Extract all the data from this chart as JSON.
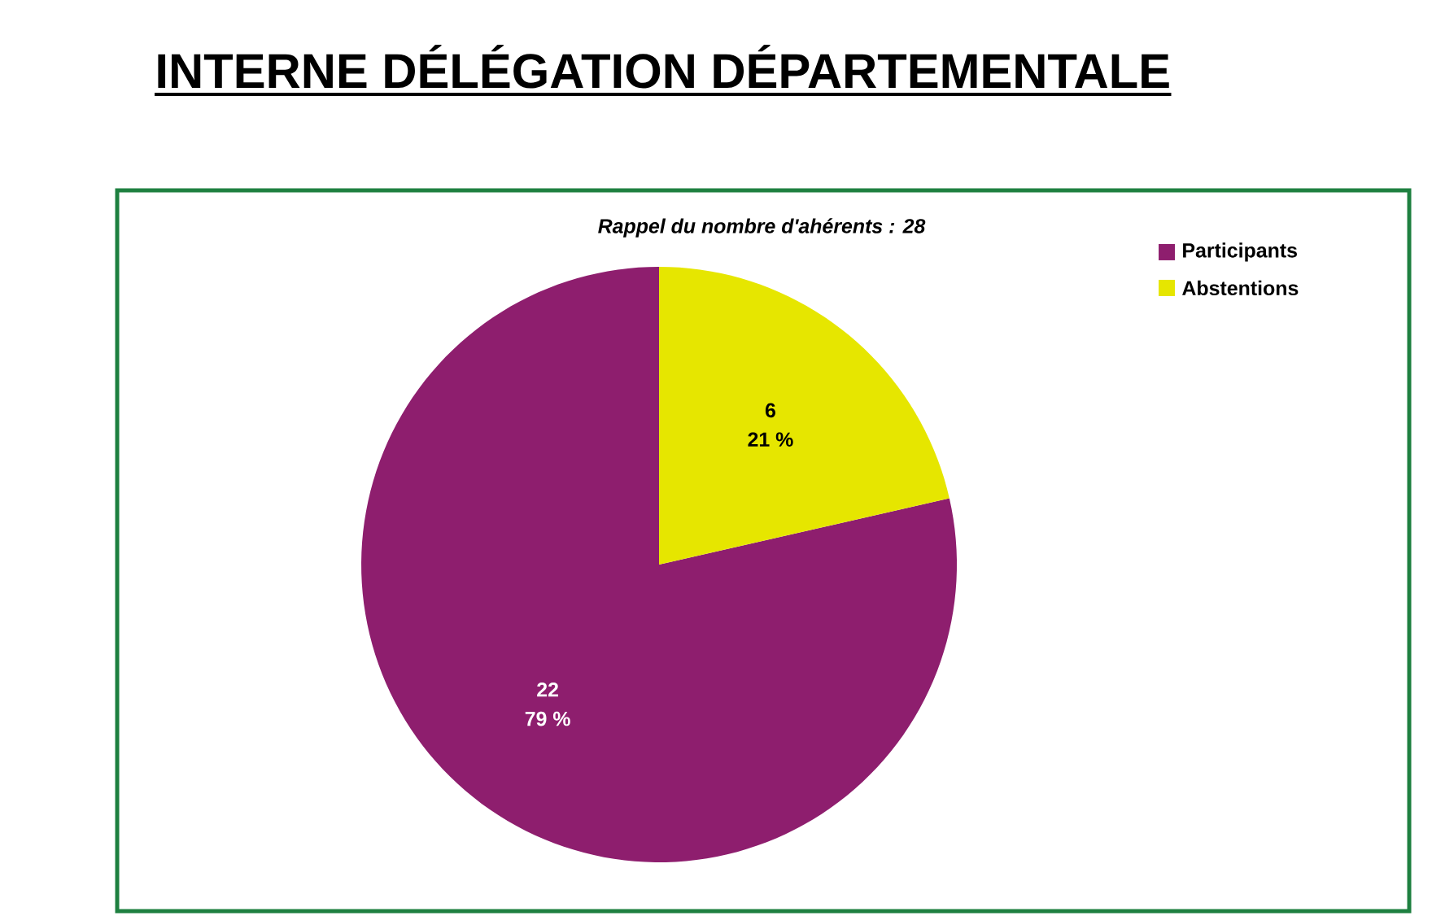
{
  "chart_data": {
    "type": "pie",
    "title": "INTERNE DÉLÉGATION DÉPARTEMENTALE",
    "subtitle": "Rappel du nombre d'ahérents : 28",
    "categories": [
      "Participants",
      "Abstentions"
    ],
    "values": [
      22,
      6
    ],
    "colors": [
      "#8e1e6e",
      "#e6e600"
    ],
    "value_labels": [
      "22",
      "6"
    ],
    "annotations": [
      {
        "text": "79 %",
        "x": "Participants"
      },
      {
        "text": "21 %",
        "x": "Abstentions"
      }
    ],
    "legend": "top right"
  }
}
